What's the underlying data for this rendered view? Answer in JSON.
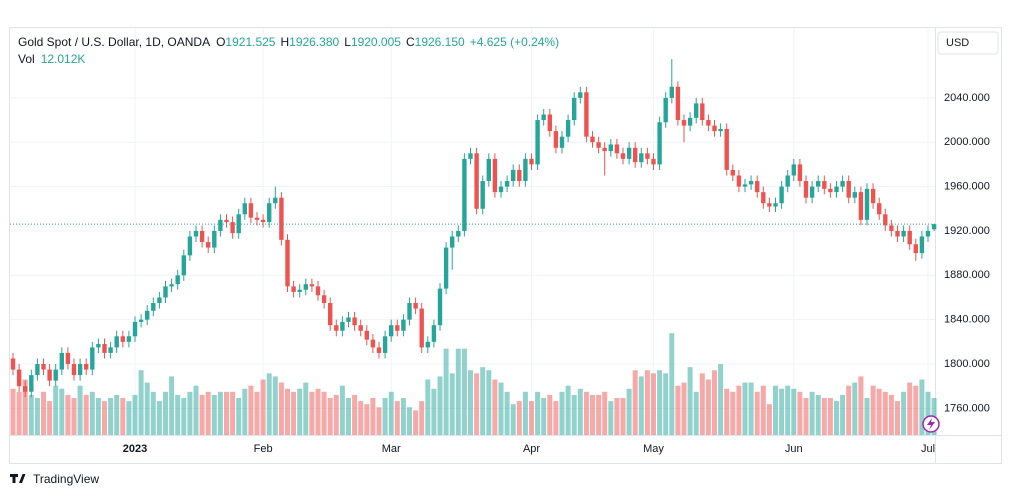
{
  "chart_data": {
    "type": "candlestick",
    "header": {
      "symbol": "Gold Spot / U.S. Dollar, 1D, OANDA",
      "ohlc": [
        {
          "key": "O",
          "value": "1921.525"
        },
        {
          "key": "H",
          "value": "1926.380"
        },
        {
          "key": "L",
          "value": "1920.005"
        },
        {
          "key": "C",
          "value": "1926.150"
        }
      ],
      "change": "+4.625 (+0.24%)",
      "volume_key": "Vol",
      "volume_value": "12.012K"
    },
    "currency": "USD",
    "brand": "TradingView",
    "up_color": "#26a69a",
    "down_color": "#ef5350",
    "grid": true,
    "ylim": [
      1736,
      2103
    ],
    "yticks": [
      {
        "value": 1760,
        "label": "1760.000"
      },
      {
        "value": 1800,
        "label": "1800.000"
      },
      {
        "value": 1840,
        "label": "1840.000"
      },
      {
        "value": 1880,
        "label": "1880.000"
      },
      {
        "value": 1920,
        "label": "1920.000"
      },
      {
        "value": 1960,
        "label": "1960.000"
      },
      {
        "value": 2000,
        "label": "2000.000"
      },
      {
        "value": 2040,
        "label": "2040.000"
      }
    ],
    "volume_lim": [
      0,
      132
    ],
    "categories": [
      null,
      null,
      null,
      null,
      null,
      null,
      null,
      null,
      null,
      null,
      null,
      null,
      null,
      null,
      null,
      null,
      null,
      null,
      null,
      null,
      "2023",
      null,
      null,
      null,
      null,
      null,
      null,
      null,
      null,
      null,
      null,
      null,
      null,
      null,
      null,
      null,
      null,
      null,
      null,
      null,
      null,
      "Feb",
      null,
      null,
      null,
      null,
      null,
      null,
      null,
      null,
      null,
      null,
      null,
      null,
      null,
      null,
      null,
      null,
      null,
      null,
      null,
      null,
      "Mar",
      null,
      null,
      null,
      null,
      null,
      null,
      null,
      null,
      null,
      null,
      null,
      null,
      null,
      null,
      null,
      null,
      null,
      null,
      null,
      null,
      null,
      null,
      "Apr",
      null,
      null,
      null,
      null,
      null,
      null,
      null,
      null,
      null,
      null,
      null,
      null,
      null,
      null,
      null,
      null,
      null,
      null,
      null,
      "May",
      null,
      null,
      null,
      null,
      null,
      null,
      null,
      null,
      null,
      null,
      null,
      null,
      null,
      null,
      null,
      null,
      null,
      null,
      null,
      null,
      null,
      null,
      "Jun",
      null,
      null,
      null,
      null,
      null,
      null,
      null,
      null,
      null,
      null,
      null,
      null,
      null,
      null,
      null,
      null,
      null,
      null,
      null,
      null,
      null,
      "Jul",
      null
    ],
    "open": [
      1805,
      1795,
      1780,
      1775,
      1790,
      1800,
      1795,
      1785,
      1795,
      1810,
      1800,
      1790,
      1800,
      1795,
      1815,
      1818,
      1810,
      1815,
      1825,
      1820,
      1825,
      1838,
      1840,
      1848,
      1855,
      1860,
      1870,
      1872,
      1880,
      1898,
      1915,
      1920,
      1910,
      1905,
      1920,
      1930,
      1928,
      1918,
      1935,
      1945,
      1932,
      1930,
      1928,
      1945,
      1950,
      1912,
      1870,
      1865,
      1867,
      1872,
      1870,
      1862,
      1855,
      1835,
      1830,
      1838,
      1842,
      1835,
      1830,
      1822,
      1815,
      1810,
      1825,
      1835,
      1830,
      1840,
      1855,
      1850,
      1815,
      1820,
      1835,
      1868,
      1905,
      1915,
      1920,
      1985,
      1990,
      1940,
      1965,
      1985,
      1955,
      1960,
      1965,
      1975,
      1965,
      1985,
      1980,
      2020,
      2025,
      2010,
      1995,
      2005,
      2020,
      2040,
      2045,
      2005,
      2000,
      1995,
      1992,
      1998,
      1990,
      1985,
      1995,
      1982,
      1990,
      1985,
      1980,
      2018,
      2040,
      2050,
      2020,
      2015,
      2022,
      2035,
      2020,
      2015,
      2010,
      2012,
      1975,
      1970,
      1960,
      1962,
      1965,
      1955,
      1945,
      1942,
      1945,
      1960,
      1970,
      1980,
      1965,
      1950,
      1960,
      1965,
      1958,
      1955,
      1960,
      1965,
      1950,
      1955,
      1930,
      1958,
      1945,
      1935,
      1925,
      1920,
      1915,
      1920,
      1908,
      1900,
      1915,
      1921.525
    ],
    "high": [
      1810,
      1800,
      1785,
      1795,
      1805,
      1805,
      1800,
      1800,
      1815,
      1815,
      1805,
      1805,
      1805,
      1820,
      1823,
      1823,
      1820,
      1830,
      1830,
      1830,
      1843,
      1845,
      1853,
      1860,
      1865,
      1875,
      1877,
      1885,
      1903,
      1920,
      1925,
      1925,
      1915,
      1925,
      1935,
      1935,
      1933,
      1940,
      1950,
      1950,
      1937,
      1935,
      1950,
      1960,
      1955,
      1917,
      1875,
      1872,
      1877,
      1877,
      1875,
      1867,
      1860,
      1840,
      1843,
      1847,
      1847,
      1840,
      1835,
      1827,
      1820,
      1830,
      1840,
      1840,
      1845,
      1860,
      1860,
      1855,
      1825,
      1840,
      1873,
      1910,
      1920,
      1925,
      1990,
      1995,
      1995,
      1970,
      1990,
      1990,
      1965,
      1970,
      1980,
      1980,
      1990,
      1990,
      2025,
      2030,
      2030,
      2015,
      2010,
      2025,
      2045,
      2050,
      2050,
      2010,
      2005,
      2000,
      2003,
      2003,
      1995,
      2000,
      2000,
      1995,
      1995,
      1990,
      2023,
      2045,
      2075,
      2055,
      2025,
      2027,
      2040,
      2040,
      2025,
      2020,
      2017,
      2017,
      1980,
      1975,
      1967,
      1970,
      1970,
      1960,
      1950,
      1950,
      1965,
      1975,
      1985,
      1985,
      1970,
      1965,
      1970,
      1970,
      1963,
      1965,
      1970,
      1970,
      1960,
      1960,
      1963,
      1963,
      1950,
      1940,
      1930,
      1925,
      1925,
      1925,
      1913,
      1920,
      1925,
      1926.38
    ],
    "low": [
      1790,
      1775,
      1770,
      1770,
      1785,
      1790,
      1780,
      1780,
      1790,
      1795,
      1785,
      1785,
      1790,
      1790,
      1810,
      1805,
      1805,
      1810,
      1815,
      1815,
      1820,
      1833,
      1835,
      1843,
      1850,
      1855,
      1865,
      1867,
      1875,
      1893,
      1910,
      1905,
      1900,
      1900,
      1915,
      1923,
      1913,
      1913,
      1930,
      1927,
      1925,
      1923,
      1923,
      1940,
      1907,
      1865,
      1860,
      1860,
      1862,
      1865,
      1857,
      1850,
      1830,
      1825,
      1825,
      1833,
      1830,
      1825,
      1817,
      1810,
      1805,
      1805,
      1820,
      1825,
      1825,
      1835,
      1845,
      1810,
      1810,
      1815,
      1830,
      1863,
      1885,
      1910,
      1915,
      1980,
      1935,
      1935,
      1960,
      1950,
      1950,
      1955,
      1960,
      1960,
      1960,
      1975,
      1975,
      2015,
      2005,
      1990,
      1990,
      2000,
      2015,
      2035,
      2000,
      1995,
      1990,
      1970,
      1987,
      1985,
      1980,
      1980,
      1977,
      1977,
      1980,
      1975,
      1975,
      2013,
      2035,
      2015,
      2000,
      2010,
      2017,
      2015,
      2010,
      2005,
      2005,
      1970,
      1965,
      1955,
      1955,
      1957,
      1950,
      1940,
      1937,
      1937,
      1940,
      1955,
      1965,
      1960,
      1945,
      1945,
      1955,
      1953,
      1950,
      1950,
      1955,
      1945,
      1945,
      1925,
      1925,
      1940,
      1930,
      1920,
      1915,
      1910,
      1910,
      1903,
      1893,
      1895,
      1910,
      1920.005
    ],
    "close": [
      1795,
      1780,
      1775,
      1790,
      1800,
      1795,
      1785,
      1795,
      1810,
      1800,
      1790,
      1800,
      1795,
      1815,
      1818,
      1810,
      1815,
      1825,
      1820,
      1825,
      1838,
      1840,
      1848,
      1855,
      1860,
      1870,
      1872,
      1880,
      1898,
      1915,
      1920,
      1910,
      1905,
      1920,
      1930,
      1928,
      1918,
      1935,
      1945,
      1932,
      1930,
      1928,
      1945,
      1950,
      1912,
      1870,
      1865,
      1867,
      1872,
      1870,
      1862,
      1855,
      1835,
      1830,
      1838,
      1842,
      1835,
      1830,
      1822,
      1815,
      1810,
      1825,
      1835,
      1830,
      1840,
      1855,
      1850,
      1815,
      1820,
      1835,
      1868,
      1905,
      1915,
      1920,
      1985,
      1990,
      1940,
      1965,
      1985,
      1955,
      1960,
      1965,
      1975,
      1965,
      1985,
      1980,
      2020,
      2025,
      2010,
      1995,
      2005,
      2020,
      2040,
      2045,
      2005,
      2000,
      1995,
      1992,
      1998,
      1990,
      1985,
      1995,
      1982,
      1990,
      1985,
      1980,
      2018,
      2040,
      2050,
      2020,
      2015,
      2022,
      2035,
      2020,
      2015,
      2010,
      2012,
      1975,
      1970,
      1960,
      1962,
      1965,
      1955,
      1945,
      1942,
      1945,
      1960,
      1970,
      1980,
      1965,
      1950,
      1960,
      1965,
      1958,
      1955,
      1960,
      1965,
      1950,
      1955,
      1930,
      1958,
      1945,
      1935,
      1925,
      1920,
      1915,
      1920,
      1908,
      1900,
      1915,
      1920,
      1926.15
    ],
    "volume": [
      15,
      14,
      18,
      13,
      12,
      14,
      11,
      16,
      15,
      13,
      12,
      16,
      13,
      14,
      12,
      11,
      12,
      13,
      12,
      11,
      13,
      21,
      17,
      14,
      11,
      14,
      19,
      13,
      12,
      14,
      16,
      13,
      14,
      13,
      14,
      14,
      14,
      12,
      15,
      16,
      14,
      18,
      20,
      19,
      17,
      15,
      14,
      15,
      17,
      14,
      15,
      14,
      12,
      13,
      16,
      12,
      13,
      11,
      10,
      12,
      9,
      12,
      14,
      11,
      12,
      9,
      8,
      11,
      18,
      15,
      19,
      28,
      20,
      28,
      28,
      21,
      20,
      22,
      21,
      18,
      17,
      14,
      10,
      11,
      14,
      11,
      14,
      12,
      13,
      11,
      14,
      16,
      13,
      15,
      14,
      13,
      13,
      14,
      11,
      12,
      12,
      15,
      21,
      19,
      21,
      20,
      21,
      20,
      33,
      16,
      17,
      22,
      14,
      20,
      18,
      21,
      23,
      15,
      14,
      16,
      17,
      17,
      14,
      16,
      10,
      16,
      15,
      16,
      15,
      14,
      12,
      14,
      13,
      12,
      12,
      11,
      13,
      16,
      17,
      19,
      12,
      16,
      15,
      14,
      13,
      11,
      14,
      17,
      16,
      18,
      14,
      12.012
    ]
  }
}
